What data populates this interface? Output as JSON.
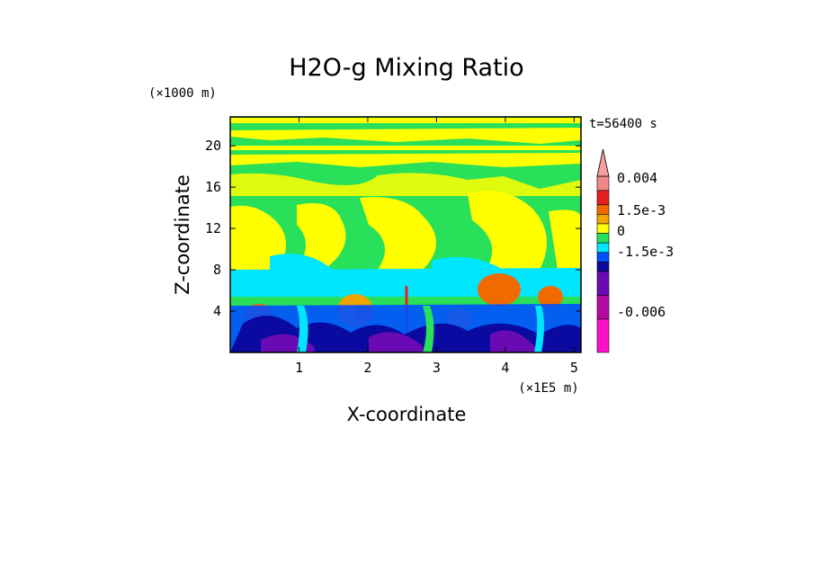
{
  "chart_data": {
    "type": "heatmap",
    "title": "H2O-g Mixing Ratio",
    "xlabel": "X-coordinate",
    "ylabel": "Z-coordinate",
    "x_unit": "(×1E5 m)",
    "y_unit": "(×1000 m)",
    "time_label": "t=56400 s",
    "xlim": [
      0,
      5.1
    ],
    "ylim": [
      0,
      22.8
    ],
    "x_ticks": [
      "1",
      "2",
      "3",
      "4",
      "5"
    ],
    "x_tick_values": [
      1,
      2,
      3,
      4,
      5
    ],
    "y_ticks": [
      "4",
      "8",
      "12",
      "16",
      "20"
    ],
    "y_tick_values": [
      4,
      8,
      12,
      16,
      20
    ],
    "colorbar": {
      "labels": [
        "0.004",
        "1.5e-3",
        "0",
        "-1.5e-3",
        "-0.006"
      ],
      "levels_top_to_bottom": [
        "#ef8a8a",
        "#e62020",
        "#f06a00",
        "#f0a500",
        "#ffff00",
        "#28e05a",
        "#00e6ff",
        "#0050ff",
        "#0a0aa0",
        "#6a0ab4",
        "#b40aa0",
        "#ff10c8"
      ],
      "extend_arrow_color": "#f4a0a0"
    },
    "layers_by_height": [
      {
        "z_range": [
          18,
          22.8
        ],
        "dominant": "yellow/green bands"
      },
      {
        "z_range": [
          9,
          18
        ],
        "dominant": "green with yellow plumes"
      },
      {
        "z_range": [
          6,
          9
        ],
        "dominant": "cyan and yellow"
      },
      {
        "z_range": [
          0,
          6
        ],
        "dominant": "blue, navy, purple with orange cells"
      }
    ]
  }
}
